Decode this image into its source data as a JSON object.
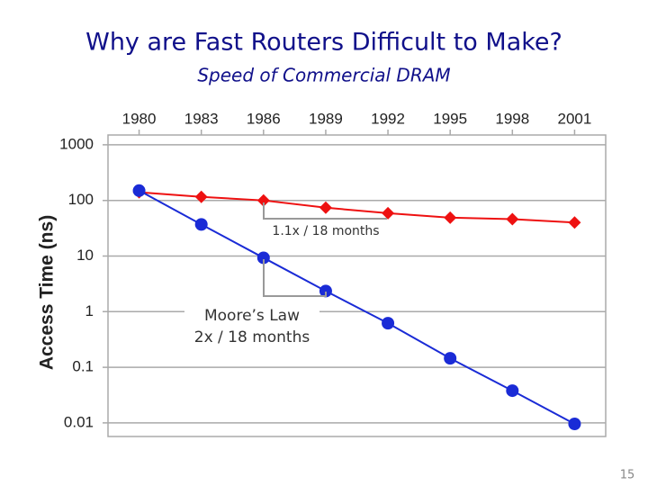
{
  "chart_data": {
    "type": "line",
    "title": "Why are Fast Routers Difficult to Make?",
    "subtitle": "Speed of Commercial DRAM",
    "ylabel": "Access Time (ns)",
    "yscale": "log",
    "x": [
      1980,
      1983,
      1986,
      1989,
      1992,
      1995,
      1998,
      2001
    ],
    "series": [
      {
        "name": "DRAM",
        "color": "#ee1111",
        "marker": "diamond",
        "values": [
          140,
          116,
          100,
          74,
          59,
          49,
          46,
          40
        ]
      },
      {
        "name": "Moore",
        "color": "#1a2bd6",
        "marker": "circle",
        "values": [
          150,
          37,
          9.3,
          2.35,
          0.62,
          0.145,
          0.038,
          0.0096
        ]
      }
    ],
    "xlim": [
      1978.5,
      2002.5
    ],
    "xticks": [
      1980,
      1983,
      1986,
      1989,
      1992,
      1995,
      1998,
      2001
    ],
    "ylim": [
      0.0057,
      1500
    ],
    "yticks": [
      1000,
      100,
      10,
      1,
      0.1,
      0.01
    ],
    "grid": true,
    "annotations": [
      "1.1x / 18 months",
      "Moore’s Law",
      "2x / 18 months"
    ]
  },
  "page_number": 15
}
